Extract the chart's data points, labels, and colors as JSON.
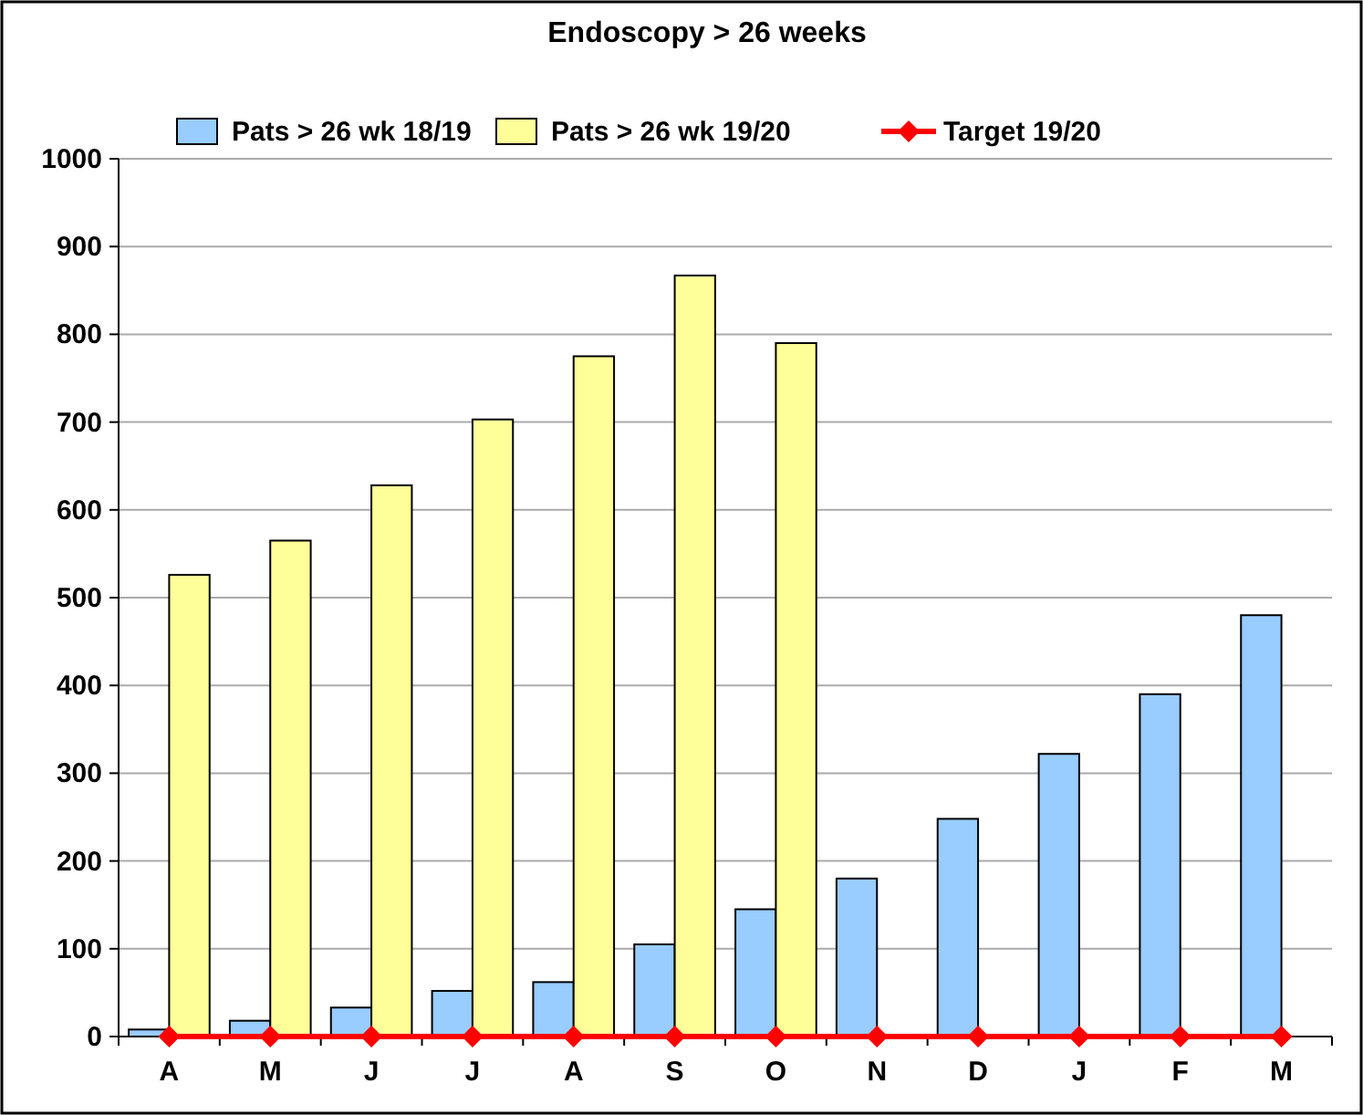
{
  "chart_data": {
    "type": "bar",
    "title": "Endoscopy > 26 weeks",
    "categories": [
      "A",
      "M",
      "J",
      "J",
      "A",
      "S",
      "O",
      "N",
      "D",
      "J",
      "F",
      "M"
    ],
    "series": [
      {
        "name": "Pats > 26 wk 18/19",
        "color": "#99ccff",
        "values": [
          8,
          18,
          33,
          52,
          62,
          105,
          145,
          180,
          248,
          322,
          390,
          480
        ]
      },
      {
        "name": "Pats > 26 wk 19/20",
        "color": "#ffff99",
        "values": [
          526,
          565,
          628,
          703,
          775,
          867,
          790,
          null,
          null,
          null,
          null,
          null
        ]
      },
      {
        "name": "Target 19/20",
        "type": "line",
        "color": "#ff0000",
        "marker": "diamond",
        "values": [
          0,
          0,
          0,
          0,
          0,
          0,
          0,
          0,
          0,
          0,
          0,
          0
        ]
      }
    ],
    "ylim": [
      0,
      1000
    ],
    "yticks": [
      0,
      100,
      200,
      300,
      400,
      500,
      600,
      700,
      800,
      900,
      1000
    ],
    "grid": "y",
    "legend": "top"
  }
}
